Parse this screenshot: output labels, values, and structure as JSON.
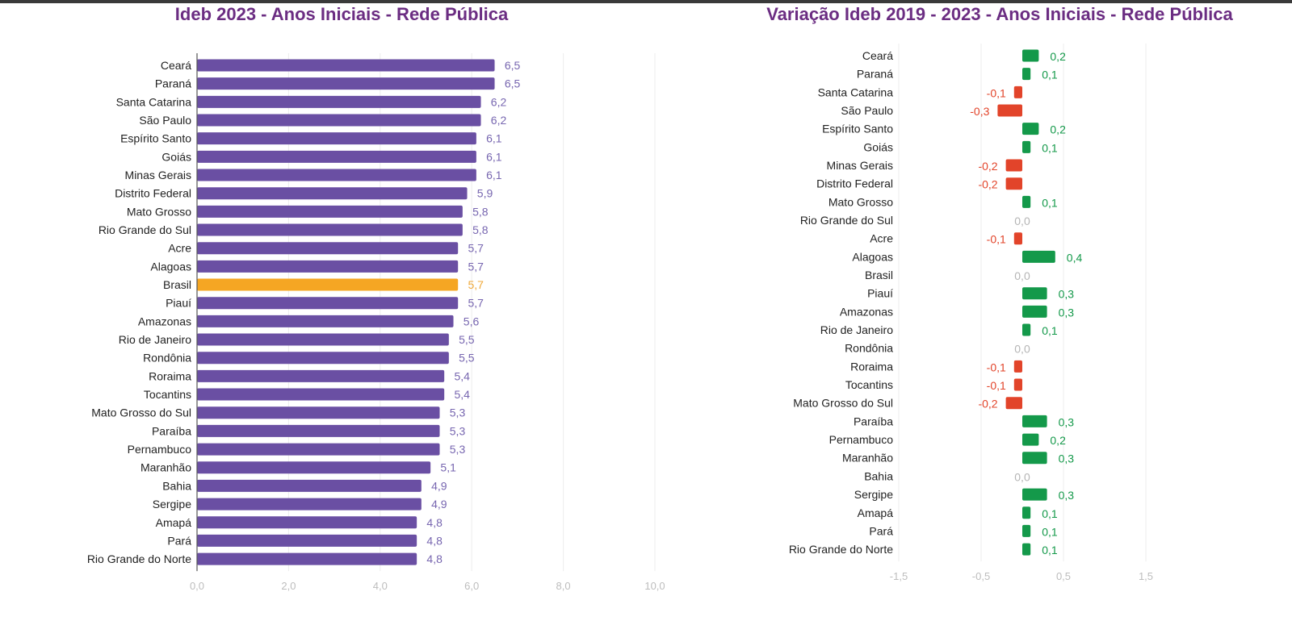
{
  "colors": {
    "title": "#6b2d82",
    "bar_default": "#6a4fa3",
    "bar_highlight": "#f5a623",
    "label_default": "#7766b0",
    "label_highlight": "#f0a93a",
    "positive": "#14994a",
    "negative": "#e2442a",
    "zero_label": "#b5b5b5",
    "gridline": "#ececec",
    "axis": "#555555"
  },
  "chart_data": [
    {
      "type": "bar",
      "orientation": "horizontal",
      "title": "Ideb 2023 - Anos Iniciais - Rede Pública",
      "xlabel": "",
      "ylabel": "",
      "xlim": [
        0,
        10
      ],
      "grid": true,
      "tick_labels": [
        "0,0",
        "2,0",
        "4,0",
        "6,0",
        "8,0",
        "10,0"
      ],
      "ticks": [
        0,
        2,
        4,
        6,
        8,
        10
      ],
      "highlight": "Brasil",
      "categories": [
        "Ceará",
        "Paraná",
        "Santa Catarina",
        "São Paulo",
        "Espírito Santo",
        "Goiás",
        "Minas Gerais",
        "Distrito Federal",
        "Mato Grosso",
        "Rio Grande do Sul",
        "Acre",
        "Alagoas",
        "Brasil",
        "Piauí",
        "Amazonas",
        "Rio de Janeiro",
        "Rondônia",
        "Roraima",
        "Tocantins",
        "Mato Grosso do Sul",
        "Paraíba",
        "Pernambuco",
        "Maranhão",
        "Bahia",
        "Sergipe",
        "Amapá",
        "Pará",
        "Rio Grande do Norte"
      ],
      "values": [
        6.5,
        6.5,
        6.2,
        6.2,
        6.1,
        6.1,
        6.1,
        5.9,
        5.8,
        5.8,
        5.7,
        5.7,
        5.7,
        5.7,
        5.6,
        5.5,
        5.5,
        5.4,
        5.4,
        5.3,
        5.3,
        5.3,
        5.1,
        4.9,
        4.9,
        4.8,
        4.8,
        4.8
      ],
      "value_labels": [
        "6,5",
        "6,5",
        "6,2",
        "6,2",
        "6,1",
        "6,1",
        "6,1",
        "5,9",
        "5,8",
        "5,8",
        "5,7",
        "5,7",
        "5,7",
        "5,7",
        "5,6",
        "5,5",
        "5,5",
        "5,4",
        "5,4",
        "5,3",
        "5,3",
        "5,3",
        "5,1",
        "4,9",
        "4,9",
        "4,8",
        "4,8",
        "4,8"
      ]
    },
    {
      "type": "bar",
      "orientation": "horizontal",
      "title": "Variação Ideb 2019 - 2023 - Anos Iniciais - Rede Pública",
      "xlabel": "",
      "ylabel": "",
      "xlim": [
        -1.5,
        2.0
      ],
      "grid": true,
      "tick_labels": [
        "-1,5",
        "-0,5",
        "0,5",
        "1,5"
      ],
      "ticks": [
        -1.5,
        -0.5,
        0.5,
        1.5
      ],
      "categories": [
        "Ceará",
        "Paraná",
        "Santa Catarina",
        "São Paulo",
        "Espírito Santo",
        "Goiás",
        "Minas Gerais",
        "Distrito Federal",
        "Mato Grosso",
        "Rio Grande do Sul",
        "Acre",
        "Alagoas",
        "Brasil",
        "Piauí",
        "Amazonas",
        "Rio de Janeiro",
        "Rondônia",
        "Roraima",
        "Tocantins",
        "Mato Grosso do Sul",
        "Paraíba",
        "Pernambuco",
        "Maranhão",
        "Bahia",
        "Sergipe",
        "Amapá",
        "Pará",
        "Rio Grande do Norte"
      ],
      "values": [
        0.2,
        0.1,
        -0.1,
        -0.3,
        0.2,
        0.1,
        -0.2,
        -0.2,
        0.1,
        0.0,
        -0.1,
        0.4,
        0.0,
        0.3,
        0.3,
        0.1,
        0.0,
        -0.1,
        -0.1,
        -0.2,
        0.3,
        0.2,
        0.3,
        0.0,
        0.3,
        0.1,
        0.1,
        0.1
      ],
      "value_labels": [
        "0,2",
        "0,1",
        "-0,1",
        "-0,3",
        "0,2",
        "0,1",
        "-0,2",
        "-0,2",
        "0,1",
        "0,0",
        "-0,1",
        "0,4",
        "0,0",
        "0,3",
        "0,3",
        "0,1",
        "0,0",
        "-0,1",
        "-0,1",
        "-0,2",
        "0,3",
        "0,2",
        "0,3",
        "0,0",
        "0,3",
        "0,1",
        "0,1",
        "0,1"
      ]
    }
  ]
}
